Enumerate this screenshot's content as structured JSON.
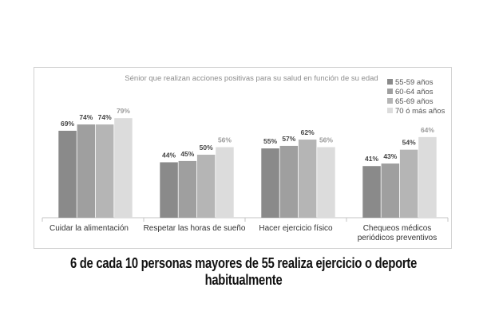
{
  "chart_data": {
    "type": "bar",
    "title": "Sénior que realizan acciones positivas para su salud en función de su edad",
    "categories": [
      [
        "Cuidar la alimentación"
      ],
      [
        "Respetar las horas de sueño"
      ],
      [
        "Hacer ejercicio físico"
      ],
      [
        "Chequeos médicos",
        "periódicos preventivos"
      ]
    ],
    "series": [
      {
        "name": "55-59 años",
        "values": [
          69,
          44,
          55,
          41
        ]
      },
      {
        "name": "60-64 años",
        "values": [
          74,
          45,
          57,
          43
        ]
      },
      {
        "name": "65-69 años",
        "values": [
          74,
          50,
          62,
          54
        ]
      },
      {
        "name": "70 ó más años",
        "values": [
          79,
          56,
          56,
          64
        ]
      }
    ],
    "value_suffix": "%",
    "ylim": [
      0,
      100
    ],
    "grid": false,
    "legend_position": "top-right",
    "colors": {
      "series": [
        "#8a8a8a",
        "#9f9f9f",
        "#b5b5b5",
        "#dcdcdc"
      ],
      "value_labels": [
        "#444444",
        "#444444",
        "#444444",
        "#9a9a9a"
      ]
    }
  },
  "caption": "6 de cada 10 personas mayores de 55 realiza ejercicio o deporte habitualmente"
}
